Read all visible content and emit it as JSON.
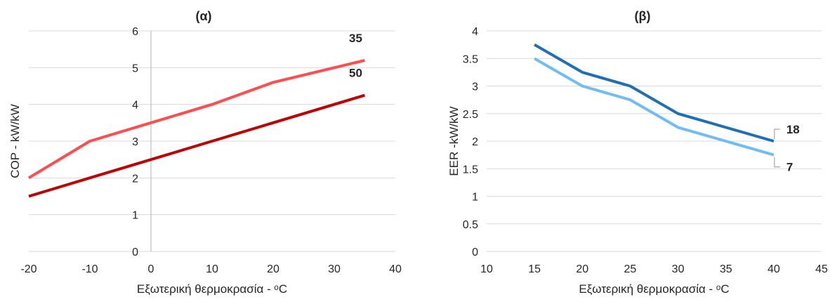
{
  "colors": {
    "grid": "#d9d9d9",
    "zero_axis": "#bfbfbf",
    "text": "#262626",
    "series_label_gray": "#595959"
  },
  "chart_data": [
    {
      "type": "line",
      "title": "(α)",
      "xlabel": "Εξωτερική θερμοκρασία - ᵒC",
      "ylabel": "COP - kW/kW",
      "xlim": [
        -20,
        40
      ],
      "ylim": [
        0,
        6
      ],
      "xticks": [
        "-20",
        "-10",
        "0",
        "10",
        "20",
        "30",
        "40"
      ],
      "yticks": [
        "0",
        "1",
        "2",
        "3",
        "4",
        "5",
        "6"
      ],
      "grid": "horizontal",
      "series": [
        {
          "name": "35",
          "color": "#ff4d4d",
          "points": [
            [
              -20,
              2.0
            ],
            [
              -10,
              3.0
            ],
            [
              0,
              3.5
            ],
            [
              10,
              4.0
            ],
            [
              20,
              4.6
            ],
            [
              35,
              5.2
            ]
          ]
        },
        {
          "name": "50",
          "color": "#c00000",
          "points": [
            [
              -20,
              1.5
            ],
            [
              -10,
              2.0
            ],
            [
              0,
              2.5
            ],
            [
              10,
              3.0
            ],
            [
              20,
              3.5
            ],
            [
              35,
              4.25
            ]
          ]
        }
      ]
    },
    {
      "type": "line",
      "title": "(β)",
      "xlabel": "Εξωτερική θερμοκρασία - ᵒC",
      "ylabel": "EER -kW/kW",
      "xlim": [
        10,
        45
      ],
      "ylim": [
        0,
        4
      ],
      "xticks": [
        "10",
        "15",
        "20",
        "25",
        "30",
        "35",
        "40",
        "45"
      ],
      "yticks": [
        "0",
        "0.5",
        "1",
        "1.5",
        "2",
        "2.5",
        "3",
        "3.5",
        "4"
      ],
      "grid": "horizontal",
      "series": [
        {
          "name": "18",
          "color": "#1f6fb5",
          "points": [
            [
              15,
              3.75
            ],
            [
              20,
              3.25
            ],
            [
              25,
              3.0
            ],
            [
              30,
              2.5
            ],
            [
              40,
              2.0
            ]
          ]
        },
        {
          "name": "7",
          "color": "#70bdf6",
          "points": [
            [
              15,
              3.5
            ],
            [
              20,
              3.0
            ],
            [
              25,
              2.75
            ],
            [
              30,
              2.25
            ],
            [
              40,
              1.75
            ]
          ]
        }
      ]
    }
  ]
}
